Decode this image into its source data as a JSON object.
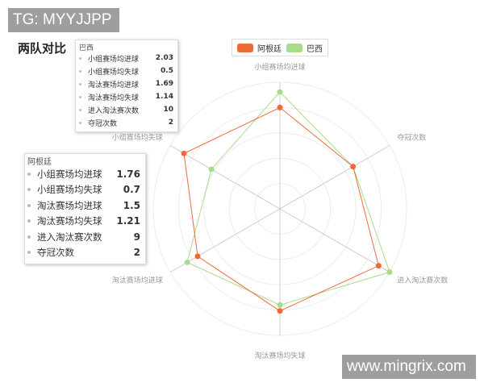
{
  "watermarks": {
    "top_left": "TG: MYYJJPP",
    "bottom_right": "www.mingrix.com"
  },
  "title": "两队对比",
  "legend": [
    {
      "name": "阿根廷",
      "color": "#ee6a38"
    },
    {
      "name": "巴西",
      "color": "#a8dc8c"
    }
  ],
  "tooltips": {
    "brazil": {
      "title": "巴西",
      "rows": [
        {
          "label": "小组赛场均进球",
          "value": "2.03"
        },
        {
          "label": "小组赛场均失球",
          "value": "0.5"
        },
        {
          "label": "淘汰赛场均进球",
          "value": "1.69"
        },
        {
          "label": "淘汰赛场均失球",
          "value": "1.14"
        },
        {
          "label": "进入淘汰赛次数",
          "value": "10"
        },
        {
          "label": "夺冠次数",
          "value": "2"
        }
      ]
    },
    "argentina": {
      "title": "阿根廷",
      "rows": [
        {
          "label": "小组赛场均进球",
          "value": "1.76"
        },
        {
          "label": "小组赛场均失球",
          "value": "0.7"
        },
        {
          "label": "淘汰赛场均进球",
          "value": "1.5"
        },
        {
          "label": "淘汰赛场均失球",
          "value": "1.21"
        },
        {
          "label": "进入淘汰赛次数",
          "value": "9"
        },
        {
          "label": "夺冠次数",
          "value": "2"
        }
      ]
    }
  },
  "chart_data": {
    "type": "radar",
    "indicators": [
      {
        "name": "小组赛场均进球",
        "max": 2.2
      },
      {
        "name": "小组赛场均失球",
        "max": 0.8
      },
      {
        "name": "淘汰赛场均进球",
        "max": 2.0
      },
      {
        "name": "淘汰赛场均失球",
        "max": 1.5
      },
      {
        "name": "进入淘汰赛次数",
        "max": 10
      },
      {
        "name": "夺冠次数",
        "max": 3
      }
    ],
    "series": [
      {
        "name": "阿根廷",
        "color": "#ee6a38",
        "values": [
          1.76,
          0.7,
          1.5,
          1.21,
          9,
          2
        ]
      },
      {
        "name": "巴西",
        "color": "#a8dc8c",
        "values": [
          2.03,
          0.5,
          1.69,
          1.14,
          10,
          2
        ]
      }
    ],
    "rings": 5,
    "legend_position": "top"
  }
}
